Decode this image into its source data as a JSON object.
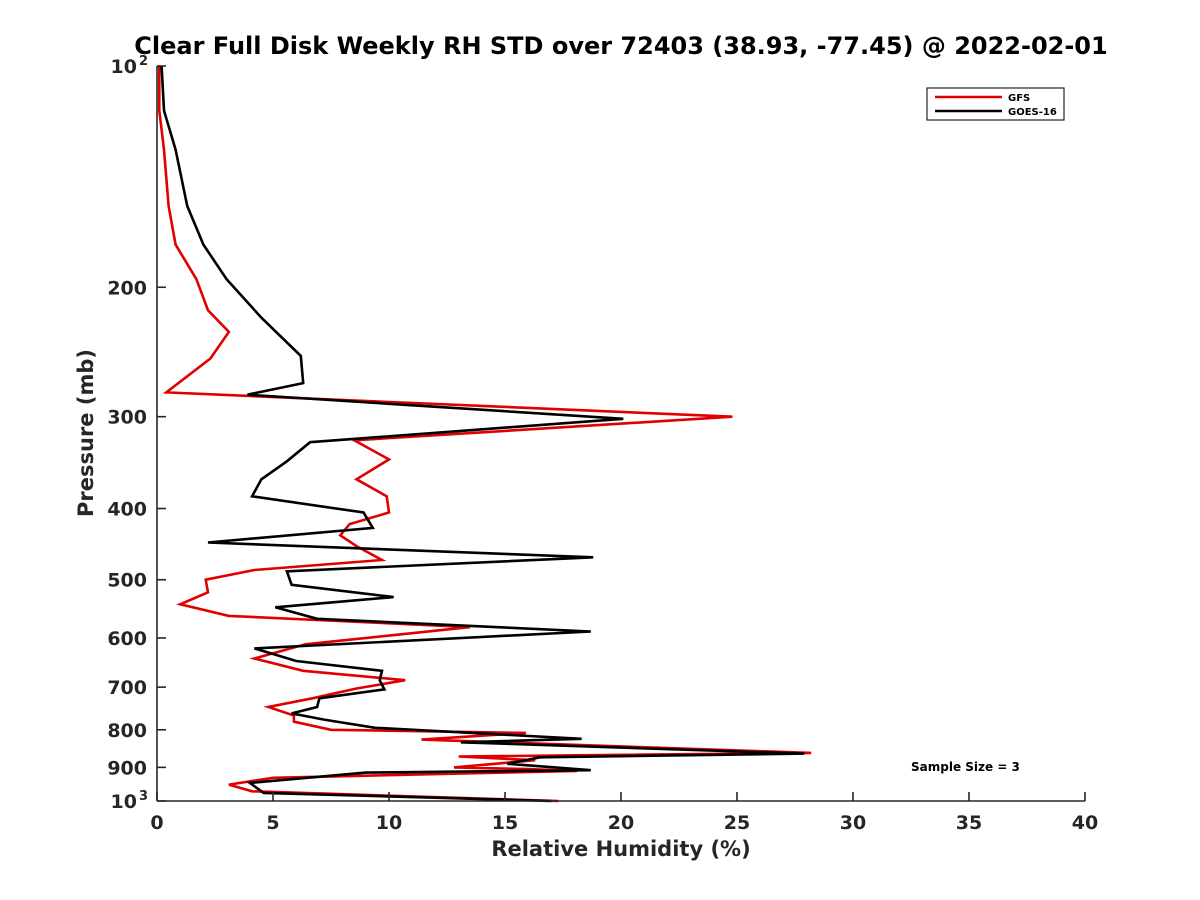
{
  "chart_data": {
    "type": "line",
    "title": "Clear Full Disk Weekly RH STD over 72403 (38.93, -77.45) @ 2022-02-01",
    "xlabel": "Relative Humidity (%)",
    "ylabel": "Pressure (mb)",
    "xlim": [
      0,
      40
    ],
    "ylim": [
      100,
      1000
    ],
    "y_scale": "log",
    "y_reversed": true,
    "x_ticks": [
      "0",
      "5",
      "10",
      "15",
      "20",
      "25",
      "30",
      "35",
      "40"
    ],
    "y_ticks": [
      {
        "value": 100,
        "label": "10",
        "sup": "2"
      },
      {
        "value": 200,
        "label": "200",
        "sup": ""
      },
      {
        "value": 300,
        "label": "300",
        "sup": ""
      },
      {
        "value": 400,
        "label": "400",
        "sup": ""
      },
      {
        "value": 500,
        "label": "500",
        "sup": ""
      },
      {
        "value": 600,
        "label": "600",
        "sup": ""
      },
      {
        "value": 700,
        "label": "700",
        "sup": ""
      },
      {
        "value": 800,
        "label": "800",
        "sup": ""
      },
      {
        "value": 900,
        "label": "900",
        "sup": ""
      },
      {
        "value": 1000,
        "label": "10",
        "sup": "3"
      }
    ],
    "legend": "top-right",
    "annotation": "Sample Size = 3",
    "series": [
      {
        "name": "GFS",
        "color": "#e00000",
        "x": [
          0.1,
          0.1,
          0.3,
          0.5,
          0.8,
          1.7,
          2.2,
          3.1,
          2.3,
          0.4,
          24.8,
          8.5,
          10.0,
          8.6,
          9.9,
          10.0,
          8.3,
          7.9,
          8.6,
          9.7,
          4.2,
          2.1,
          2.2,
          1.0,
          3.1,
          13.5,
          6.4,
          4.2,
          6.3,
          10.7,
          8.6,
          6.7,
          4.8,
          5.9,
          5.9,
          7.5,
          15.9,
          11.4,
          28.2,
          13.0,
          16.3,
          12.8,
          16.0,
          18.1,
          5.0,
          3.1,
          4.1,
          17.3
        ],
        "y": [
          100,
          115,
          130,
          155,
          175,
          195,
          215,
          230,
          250,
          278,
          300,
          323,
          343,
          365,
          385,
          405,
          420,
          435,
          450,
          470,
          485,
          500,
          520,
          540,
          560,
          580,
          612,
          640,
          665,
          685,
          703,
          725,
          745,
          765,
          780,
          800,
          808,
          825,
          860,
          870,
          880,
          900,
          905,
          910,
          930,
          950,
          970,
          1000
        ]
      },
      {
        "name": "GOES-16",
        "color": "#000000",
        "x": [
          0.2,
          0.3,
          0.8,
          1.3,
          2.0,
          3.0,
          4.5,
          6.2,
          6.3,
          3.9,
          20.1,
          6.6,
          5.6,
          4.5,
          4.1,
          8.9,
          9.3,
          2.2,
          18.8,
          5.6,
          5.8,
          10.2,
          5.1,
          6.9,
          18.7,
          4.2,
          6.0,
          9.7,
          9.6,
          9.8,
          7.0,
          6.9,
          5.8,
          7.2,
          9.4,
          18.3,
          13.1,
          27.9,
          16.5,
          15.1,
          18.7,
          9.0,
          4.0,
          4.6,
          17.0
        ],
        "y": [
          100,
          115,
          130,
          155,
          175,
          195,
          220,
          248,
          270,
          280,
          302,
          325,
          345,
          365,
          385,
          405,
          425,
          445,
          466,
          487,
          508,
          528,
          545,
          565,
          588,
          620,
          645,
          665,
          685,
          705,
          725,
          745,
          760,
          775,
          795,
          823,
          832,
          862,
          872,
          890,
          908,
          915,
          945,
          975,
          1000
        ]
      }
    ]
  }
}
